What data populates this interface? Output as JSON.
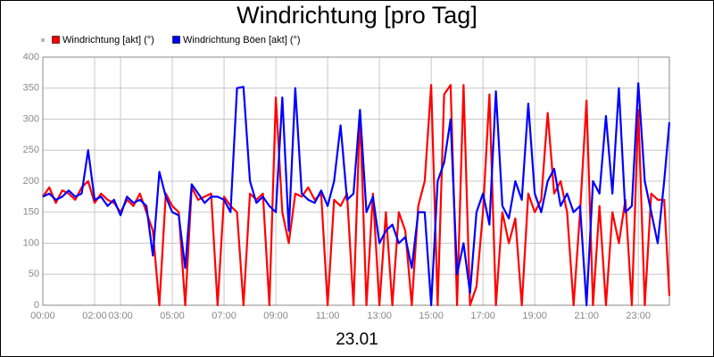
{
  "chart_data": {
    "type": "line",
    "title": "Windrichtung [pro Tag]",
    "xlabel": "23.01",
    "x": [
      0,
      0.25,
      0.5,
      0.75,
      1,
      1.25,
      1.5,
      1.75,
      2,
      2.25,
      2.5,
      2.75,
      3,
      3.25,
      3.5,
      3.75,
      4,
      4.25,
      4.5,
      4.75,
      5,
      5.25,
      5.5,
      5.75,
      6,
      6.25,
      6.5,
      6.75,
      7,
      7.25,
      7.5,
      7.75,
      8,
      8.25,
      8.5,
      8.75,
      9,
      9.25,
      9.5,
      9.75,
      10,
      10.25,
      10.5,
      10.75,
      11,
      11.25,
      11.5,
      11.75,
      12,
      12.25,
      12.5,
      12.75,
      13,
      13.25,
      13.5,
      13.75,
      14,
      14.25,
      14.5,
      14.75,
      15,
      15.25,
      15.5,
      15.75,
      16,
      16.25,
      16.5,
      16.75,
      17,
      17.25,
      17.5,
      17.75,
      18,
      18.25,
      18.5,
      18.75,
      19,
      19.25,
      19.5,
      19.75,
      20,
      20.25,
      20.5,
      20.75,
      21,
      21.25,
      21.5,
      21.75,
      22,
      22.25,
      22.5,
      22.75,
      23,
      23.25,
      23.5,
      23.75,
      24,
      24.2
    ],
    "series": [
      {
        "name": "Windrichtung [akt] (°)",
        "color": "#ff0000",
        "values": [
          175,
          190,
          165,
          185,
          180,
          170,
          190,
          200,
          165,
          180,
          170,
          165,
          150,
          170,
          160,
          180,
          150,
          120,
          0,
          180,
          160,
          150,
          0,
          190,
          170,
          175,
          180,
          0,
          175,
          160,
          150,
          0,
          180,
          170,
          180,
          0,
          335,
          150,
          100,
          180,
          175,
          190,
          170,
          180,
          0,
          170,
          160,
          180,
          0,
          310,
          0,
          180,
          0,
          150,
          0,
          150,
          120,
          0,
          160,
          200,
          355,
          0,
          340,
          355,
          0,
          355,
          0,
          30,
          150,
          340,
          0,
          150,
          100,
          140,
          0,
          180,
          150,
          170,
          310,
          180,
          200,
          150,
          0,
          150,
          330,
          0,
          160,
          0,
          150,
          100,
          170,
          0,
          315,
          0,
          180,
          170,
          170,
          15
        ]
      },
      {
        "name": "Windrichtung Böen [akt] (°)",
        "color": "#0000ff",
        "values": [
          175,
          180,
          170,
          175,
          185,
          175,
          180,
          250,
          170,
          175,
          160,
          170,
          145,
          175,
          165,
          170,
          160,
          80,
          215,
          175,
          150,
          145,
          60,
          195,
          180,
          165,
          175,
          175,
          170,
          150,
          350,
          352,
          200,
          165,
          175,
          160,
          150,
          335,
          120,
          350,
          180,
          170,
          165,
          185,
          160,
          200,
          290,
          170,
          180,
          315,
          150,
          175,
          100,
          120,
          130,
          100,
          110,
          60,
          150,
          150,
          0,
          200,
          230,
          300,
          50,
          100,
          20,
          150,
          180,
          130,
          345,
          160,
          140,
          200,
          170,
          325,
          180,
          150,
          200,
          220,
          160,
          180,
          150,
          160,
          0,
          200,
          180,
          305,
          180,
          350,
          150,
          160,
          358,
          200,
          150,
          100,
          200,
          295
        ]
      }
    ],
    "xlim": [
      0,
      24.2
    ],
    "xticks": [
      {
        "value": 0,
        "label": "00:00"
      },
      {
        "value": 2,
        "label": "02:00"
      },
      {
        "value": 3,
        "label": "03:00"
      },
      {
        "value": 5,
        "label": "05:00"
      },
      {
        "value": 7,
        "label": "07:00"
      },
      {
        "value": 9,
        "label": "09:00"
      },
      {
        "value": 11,
        "label": "11:00"
      },
      {
        "value": 13,
        "label": "13:00"
      },
      {
        "value": 15,
        "label": "15:00"
      },
      {
        "value": 17,
        "label": "17:00"
      },
      {
        "value": 19,
        "label": "19:00"
      },
      {
        "value": 21,
        "label": "21:00"
      },
      {
        "value": 23,
        "label": "23:00"
      }
    ],
    "ylim": [
      0,
      400
    ],
    "yticks": [
      0,
      50,
      100,
      150,
      200,
      250,
      300,
      350,
      400
    ],
    "grid": true
  }
}
